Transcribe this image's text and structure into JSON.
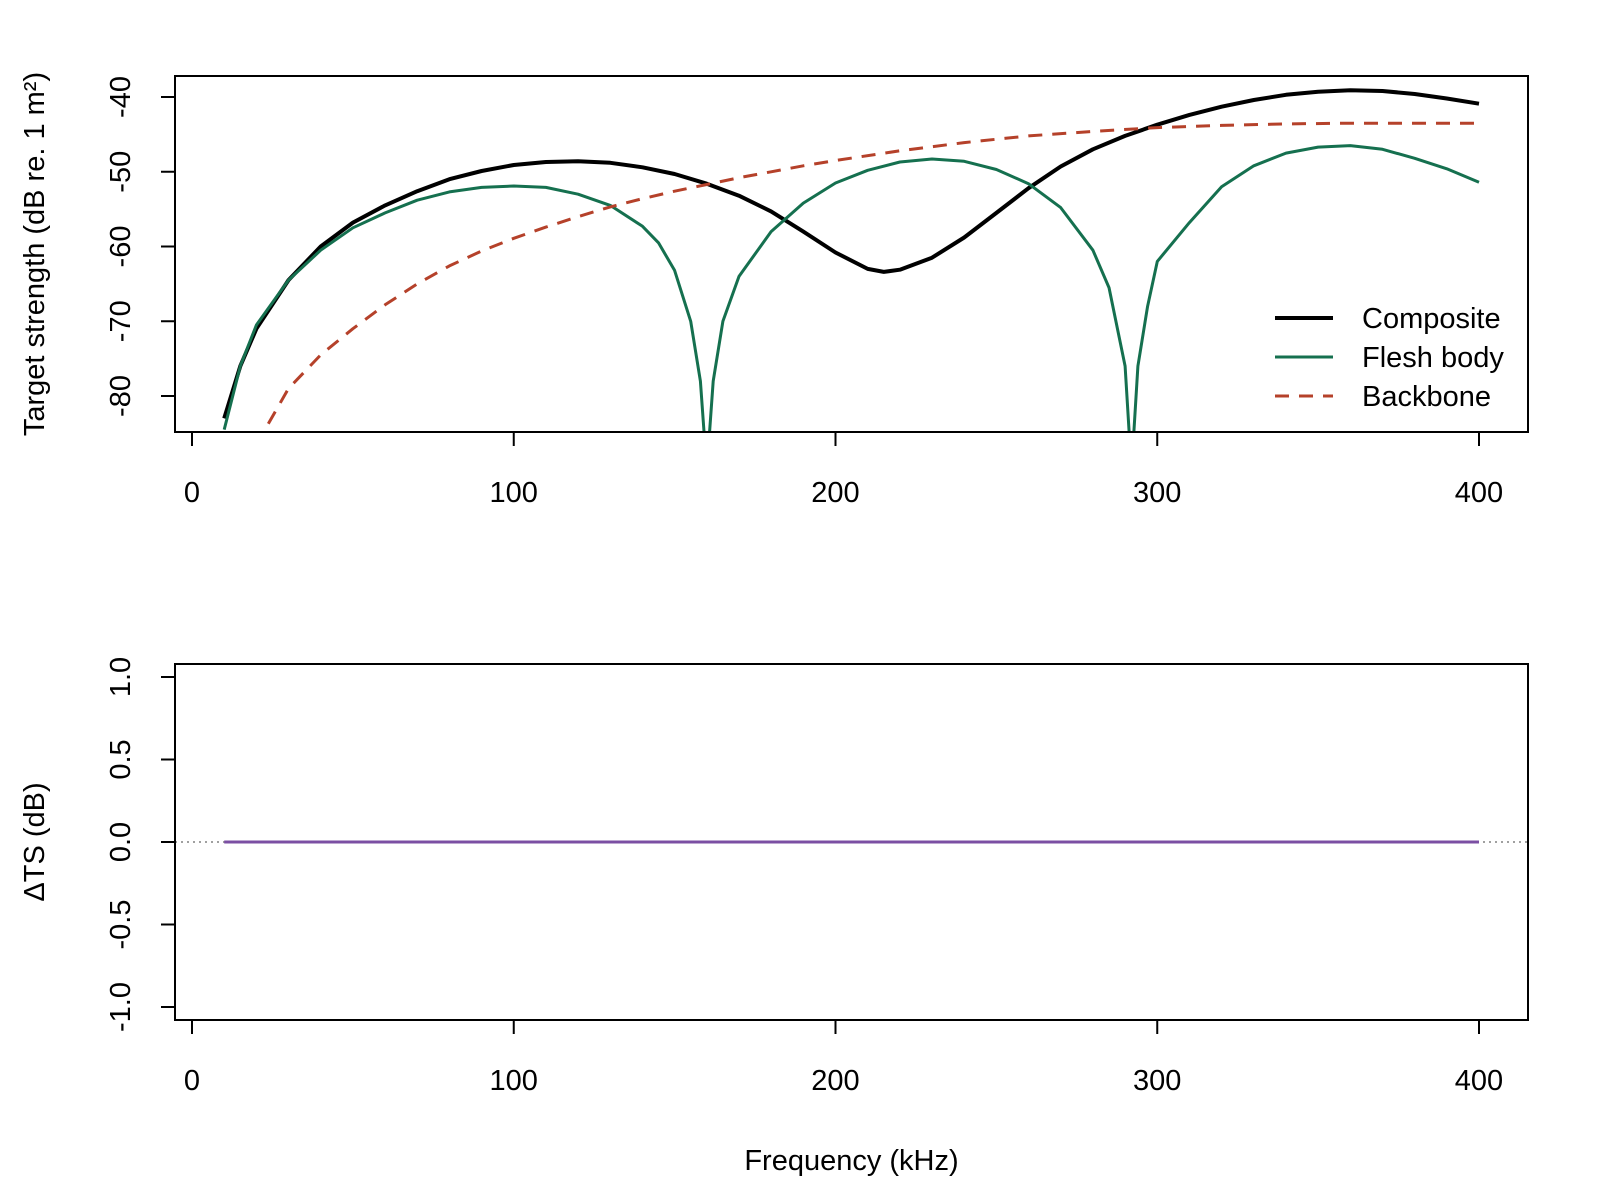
{
  "chart_data": [
    {
      "type": "line",
      "title": "",
      "xlabel": "",
      "ylabel": "Target strength (dB re. 1 m²)",
      "xlim": [
        -5,
        415
      ],
      "ylim": [
        -84.8,
        -37.2
      ],
      "xticks": [
        "0",
        "100",
        "200",
        "300",
        "400"
      ],
      "yticks": [
        "-80",
        "-70",
        "-60",
        "-50",
        "-40"
      ],
      "grid": false,
      "legend_position": "bottom-right",
      "series": [
        {
          "name": "Composite",
          "color": "#000000",
          "style": "solid",
          "x": [
            10,
            15,
            20,
            30,
            40,
            50,
            60,
            70,
            80,
            90,
            100,
            110,
            120,
            130,
            140,
            150,
            160,
            170,
            180,
            190,
            200,
            210,
            215,
            220,
            230,
            240,
            250,
            260,
            270,
            280,
            290,
            300,
            310,
            320,
            330,
            340,
            350,
            360,
            370,
            380,
            390,
            400
          ],
          "y": [
            -83,
            -76,
            -71,
            -64.5,
            -60,
            -56.8,
            -54.5,
            -52.6,
            -51,
            -49.9,
            -49.1,
            -48.7,
            -48.6,
            -48.8,
            -49.4,
            -50.3,
            -51.6,
            -53.2,
            -55.3,
            -58,
            -60.8,
            -63,
            -63.4,
            -63.1,
            -61.5,
            -58.8,
            -55.5,
            -52.2,
            -49.3,
            -47,
            -45.2,
            -43.7,
            -42.4,
            -41.3,
            -40.4,
            -39.7,
            -39.3,
            -39.1,
            -39.2,
            -39.6,
            -40.2,
            -40.9
          ]
        },
        {
          "name": "Flesh body",
          "color": "#15704f",
          "style": "solid",
          "x": [
            10,
            15,
            20,
            30,
            40,
            50,
            60,
            70,
            80,
            90,
            100,
            110,
            120,
            130,
            140,
            145,
            150,
            155,
            158,
            160,
            162,
            165,
            170,
            180,
            190,
            200,
            210,
            220,
            230,
            240,
            250,
            260,
            270,
            280,
            285,
            290,
            292,
            294,
            297,
            300,
            310,
            320,
            330,
            340,
            350,
            360,
            370,
            380,
            390,
            400
          ],
          "y": [
            -84.5,
            -76,
            -70.5,
            -64.5,
            -60.5,
            -57.5,
            -55.5,
            -53.8,
            -52.7,
            -52.1,
            -51.9,
            -52.1,
            -53,
            -54.5,
            -57.3,
            -59.5,
            -63.2,
            -70,
            -78,
            -90,
            -78,
            -70,
            -64,
            -58,
            -54.2,
            -51.5,
            -49.8,
            -48.7,
            -48.3,
            -48.6,
            -49.7,
            -51.6,
            -54.8,
            -60.5,
            -65.5,
            -76,
            -90,
            -76,
            -68,
            -62,
            -56.8,
            -52,
            -49.2,
            -47.5,
            -46.7,
            -46.5,
            -47,
            -48.2,
            -49.6,
            -51.4
          ]
        },
        {
          "name": "Backbone",
          "color": "#b5412a",
          "style": "dashed",
          "x": [
            20,
            22,
            30,
            40,
            50,
            60,
            70,
            80,
            90,
            100,
            110,
            120,
            130,
            140,
            150,
            160,
            170,
            180,
            190,
            200,
            220,
            240,
            260,
            280,
            300,
            320,
            340,
            360,
            380,
            400
          ],
          "y": [
            -86.5,
            -85,
            -79,
            -74.5,
            -71,
            -67.8,
            -65,
            -62.6,
            -60.6,
            -58.9,
            -57.4,
            -56,
            -54.7,
            -53.6,
            -52.6,
            -51.7,
            -50.8,
            -50,
            -49.2,
            -48.5,
            -47.2,
            -46.1,
            -45.2,
            -44.6,
            -44.1,
            -43.8,
            -43.6,
            -43.5,
            -43.5,
            -43.5
          ]
        }
      ]
    },
    {
      "type": "line",
      "title": "",
      "xlabel": "Frequency (kHz)",
      "ylabel": "ΔTS (dB)",
      "xlim": [
        -5,
        415
      ],
      "ylim": [
        -1.08,
        1.08
      ],
      "xticks": [
        "0",
        "100",
        "200",
        "300",
        "400"
      ],
      "yticks": [
        "-1.0",
        "-0.5",
        "0.0",
        "0.5",
        "1.0"
      ],
      "grid": false,
      "reference_line": {
        "y": 0,
        "color": "#808080",
        "style": "dotted"
      },
      "series": [
        {
          "color": "#7b4fa3",
          "style": "solid",
          "x": [
            10,
            400
          ],
          "y": [
            0,
            0
          ]
        }
      ]
    }
  ]
}
